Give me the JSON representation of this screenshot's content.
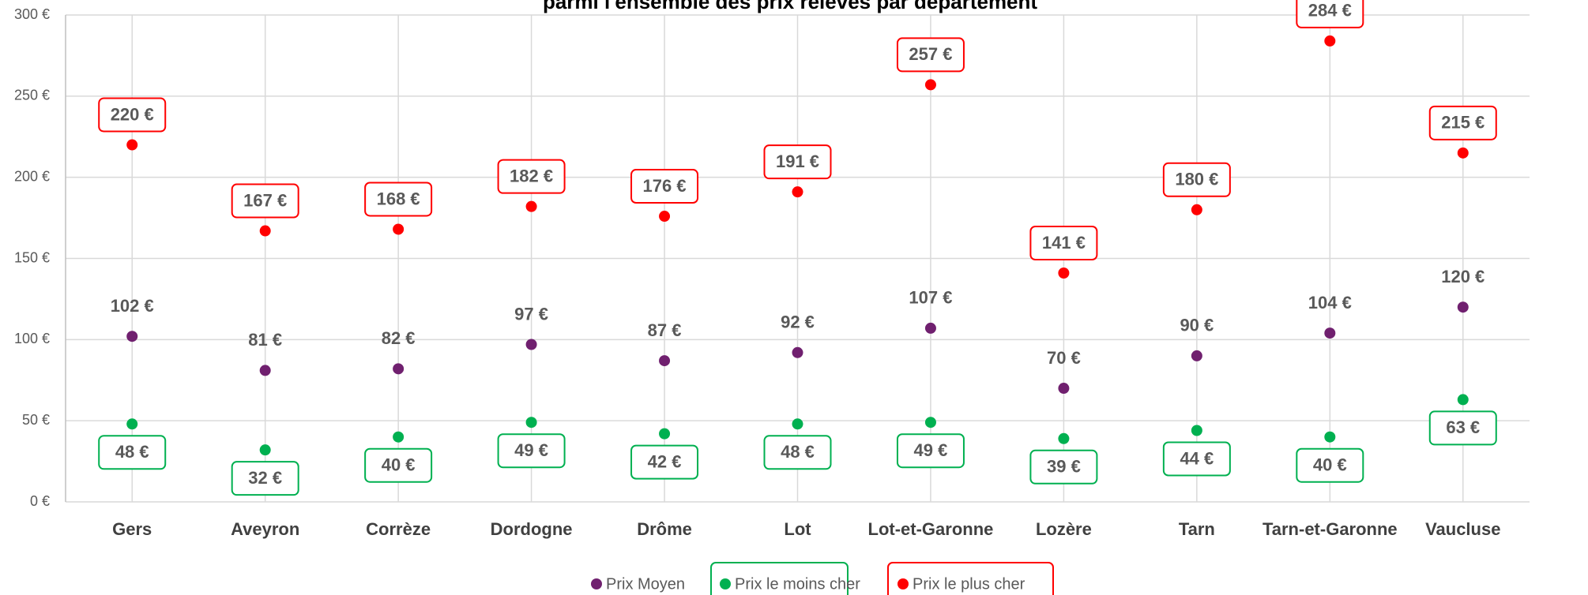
{
  "chart_data": {
    "type": "dot",
    "title": "parmi l'ensemble des prix relevés par département",
    "categories": [
      "Gers",
      "Aveyron",
      "Corrèze",
      "Dordogne",
      "Drôme",
      "Lot",
      "Lot-et-Garonne",
      "Lozère",
      "Tarn",
      "Tarn-et-Garonne",
      "Vaucluse"
    ],
    "series": [
      {
        "name": "Prix Moyen",
        "color": "#70206f",
        "label_position": "above",
        "label_border": false,
        "values": [
          102,
          81,
          82,
          97,
          87,
          92,
          107,
          70,
          90,
          104,
          120
        ],
        "value_labels": [
          "102 €",
          "81 €",
          "82 €",
          "97 €",
          "87 €",
          "92 €",
          "107 €",
          "70 €",
          "90 €",
          "104 €",
          "120 €"
        ]
      },
      {
        "name": "Prix le moins cher",
        "color": "#00b050",
        "label_position": "below",
        "label_border": true,
        "values": [
          48,
          32,
          40,
          49,
          42,
          48,
          49,
          39,
          44,
          40,
          63
        ],
        "value_labels": [
          "48 €",
          "32 €",
          "40 €",
          "49 €",
          "42 €",
          "48 €",
          "49 €",
          "39 €",
          "44 €",
          "40 €",
          "63 €"
        ]
      },
      {
        "name": "Prix le plus cher",
        "color": "#ff0000",
        "label_position": "above",
        "label_border": true,
        "values": [
          220,
          167,
          168,
          182,
          176,
          191,
          257,
          141,
          180,
          284,
          215
        ],
        "value_labels": [
          "220 €",
          "167 €",
          "168 €",
          "182 €",
          "176 €",
          "191 €",
          "257 €",
          "141 €",
          "180 €",
          "284 €",
          "215 €"
        ]
      }
    ],
    "ylim": [
      0,
      300
    ],
    "yticks": [
      {
        "value": 0,
        "label": "0 €"
      },
      {
        "value": 50,
        "label": "50 €"
      },
      {
        "value": 100,
        "label": "100 €"
      },
      {
        "value": 150,
        "label": "150 €"
      },
      {
        "value": 200,
        "label": "200 €"
      },
      {
        "value": 250,
        "label": "250 €"
      },
      {
        "value": 300,
        "label": "300 €"
      }
    ],
    "grid": true,
    "legend": "bottom"
  }
}
